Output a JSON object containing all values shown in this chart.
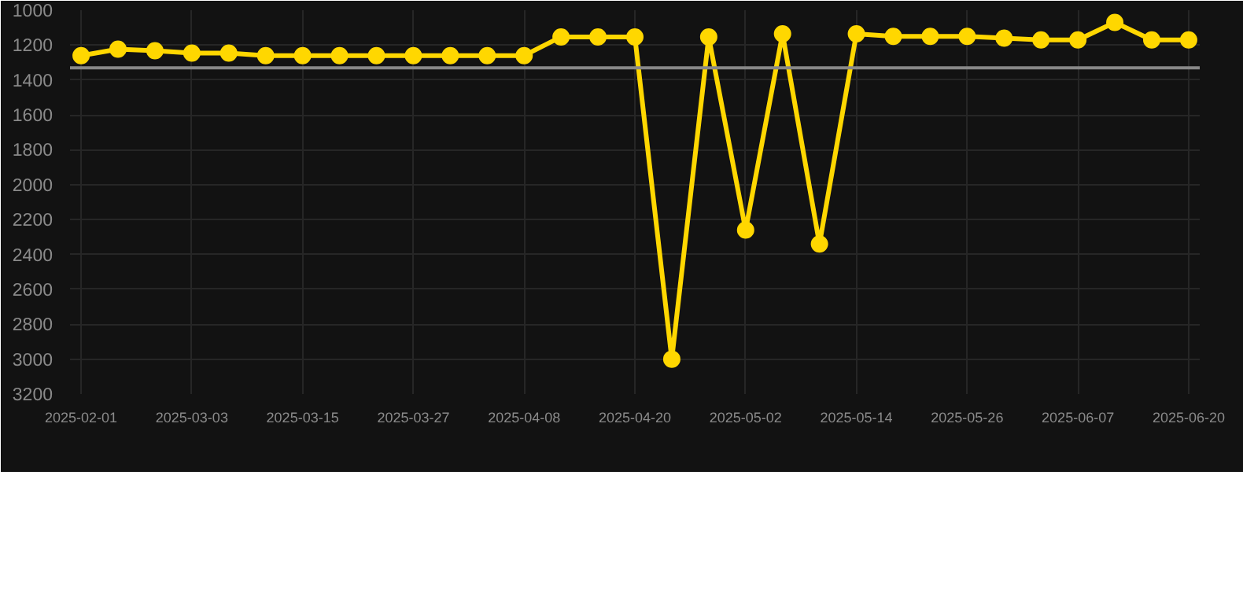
{
  "chart_data": {
    "type": "line",
    "categories": [
      "2025-02-01",
      null,
      null,
      "2025-03-03",
      null,
      null,
      "2025-03-15",
      null,
      null,
      "2025-03-27",
      null,
      null,
      "2025-04-08",
      null,
      null,
      "2025-04-20",
      null,
      null,
      "2025-05-02",
      null,
      null,
      "2025-05-14",
      null,
      null,
      "2025-05-26",
      null,
      null,
      "2025-06-07",
      null,
      null,
      "2025-06-20"
    ],
    "series": [
      {
        "color": "#ffd700",
        "values": [
          1260,
          1223,
          1232,
          1246,
          1246,
          1260,
          1260,
          1260,
          1260,
          1260,
          1260,
          1260,
          1260,
          1153,
          1153,
          1153,
          3000,
          1153,
          2260,
          1135,
          2340,
          1135,
          1150,
          1150,
          1150,
          1160,
          1170,
          1170,
          1070,
          1170,
          1170
        ]
      }
    ],
    "ylim": [
      3200,
      1000
    ],
    "yticks": [
      1000,
      1200,
      1400,
      1600,
      1800,
      2000,
      2200,
      2400,
      2600,
      2800,
      3000,
      3200
    ],
    "ref_lines": [
      {
        "axis": "y",
        "value": 1330,
        "color": "#888888"
      }
    ],
    "grid": true,
    "marker": "circle",
    "line_style": "solid"
  }
}
